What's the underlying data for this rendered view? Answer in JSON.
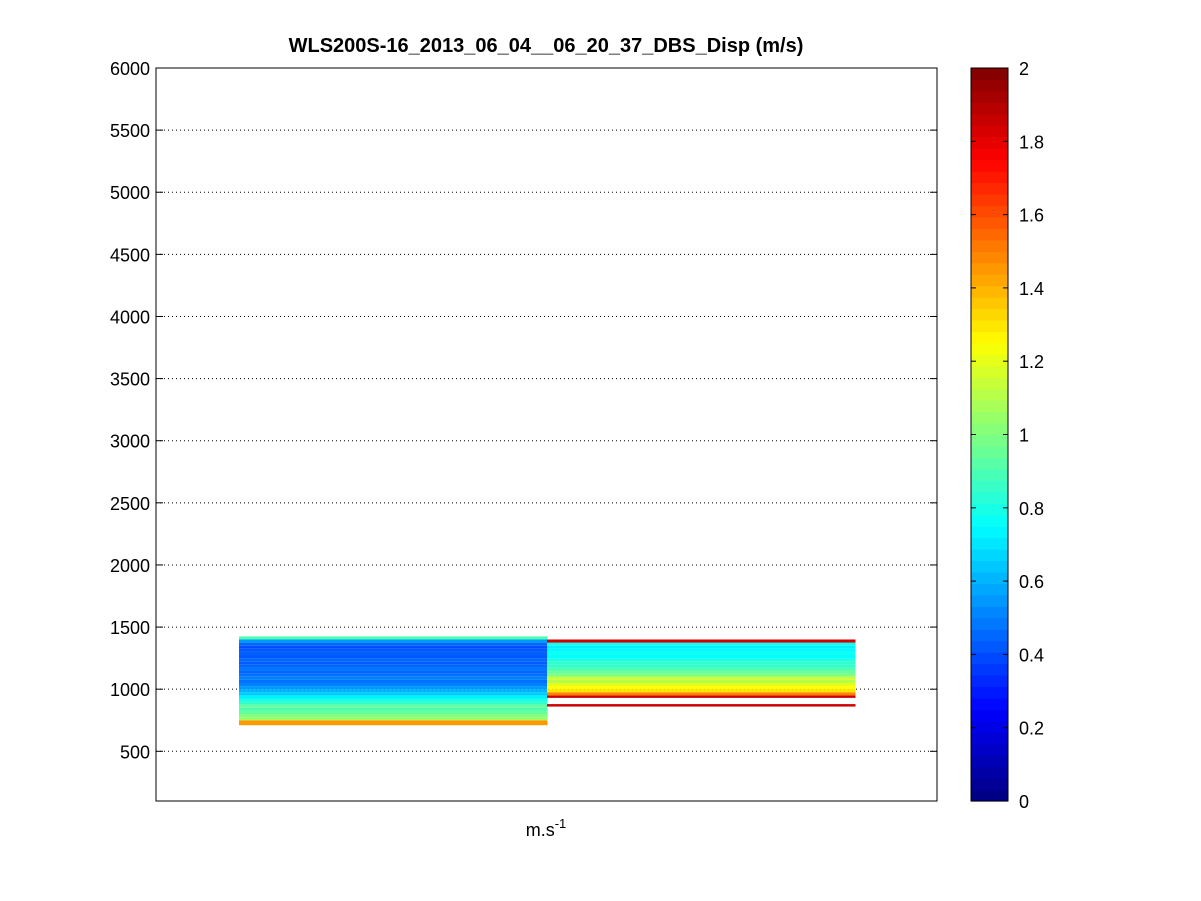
{
  "chart_data": {
    "type": "heatmap",
    "title": "WLS200S-16_2013_06_04__06_20_37_DBS_Disp (m/s)",
    "xlabel_base": "m.s",
    "xlabel_sup": "-1",
    "ylabel": "",
    "ylim": [
      100,
      6000
    ],
    "yticks": [
      500,
      1000,
      1500,
      2000,
      2500,
      3000,
      3500,
      4000,
      4500,
      5000,
      5500,
      6000
    ],
    "grid": "y-dotted",
    "colormap": "jet",
    "clim": [
      0,
      2
    ],
    "colorbar_ticks": [
      0,
      0.2,
      0.4,
      0.6,
      0.8,
      1,
      1.2,
      1.4,
      1.6,
      1.8,
      2
    ],
    "columns": [
      {
        "cells": [
          {
            "from": 710,
            "to": 750,
            "value": 1.45
          },
          {
            "from": 750,
            "to": 775,
            "value": 1.05
          },
          {
            "from": 775,
            "to": 800,
            "value": 1.0
          },
          {
            "from": 800,
            "to": 825,
            "value": 0.95
          },
          {
            "from": 825,
            "to": 850,
            "value": 0.9
          },
          {
            "from": 850,
            "to": 875,
            "value": 0.95
          },
          {
            "from": 875,
            "to": 900,
            "value": 0.85
          },
          {
            "from": 900,
            "to": 925,
            "value": 0.8
          },
          {
            "from": 925,
            "to": 950,
            "value": 0.72
          },
          {
            "from": 950,
            "to": 975,
            "value": 0.65
          },
          {
            "from": 975,
            "to": 1000,
            "value": 0.6
          },
          {
            "from": 1000,
            "to": 1025,
            "value": 0.55
          },
          {
            "from": 1025,
            "to": 1050,
            "value": 0.5
          },
          {
            "from": 1050,
            "to": 1075,
            "value": 0.47
          },
          {
            "from": 1075,
            "to": 1100,
            "value": 0.5
          },
          {
            "from": 1100,
            "to": 1125,
            "value": 0.47
          },
          {
            "from": 1125,
            "to": 1150,
            "value": 0.45
          },
          {
            "from": 1150,
            "to": 1175,
            "value": 0.48
          },
          {
            "from": 1175,
            "to": 1200,
            "value": 0.45
          },
          {
            "from": 1200,
            "to": 1225,
            "value": 0.43
          },
          {
            "from": 1225,
            "to": 1250,
            "value": 0.45
          },
          {
            "from": 1250,
            "to": 1275,
            "value": 0.42
          },
          {
            "from": 1275,
            "to": 1300,
            "value": 0.44
          },
          {
            "from": 1300,
            "to": 1325,
            "value": 0.42
          },
          {
            "from": 1325,
            "to": 1350,
            "value": 0.4
          },
          {
            "from": 1350,
            "to": 1375,
            "value": 0.45
          },
          {
            "from": 1375,
            "to": 1400,
            "value": 0.55
          },
          {
            "from": 1400,
            "to": 1425,
            "value": 0.9
          }
        ]
      },
      {
        "cells": [
          {
            "from": 860,
            "to": 880,
            "value": 1.85
          },
          {
            "from": 930,
            "to": 950,
            "value": 1.85
          },
          {
            "from": 950,
            "to": 975,
            "value": 1.5
          },
          {
            "from": 975,
            "to": 1000,
            "value": 1.3
          },
          {
            "from": 1000,
            "to": 1025,
            "value": 1.25
          },
          {
            "from": 1025,
            "to": 1050,
            "value": 1.2
          },
          {
            "from": 1050,
            "to": 1075,
            "value": 1.1
          },
          {
            "from": 1075,
            "to": 1100,
            "value": 1.15
          },
          {
            "from": 1100,
            "to": 1125,
            "value": 1.0
          },
          {
            "from": 1125,
            "to": 1150,
            "value": 0.95
          },
          {
            "from": 1150,
            "to": 1175,
            "value": 0.9
          },
          {
            "from": 1175,
            "to": 1200,
            "value": 0.85
          },
          {
            "from": 1200,
            "to": 1225,
            "value": 0.85
          },
          {
            "from": 1225,
            "to": 1250,
            "value": 0.8
          },
          {
            "from": 1250,
            "to": 1275,
            "value": 0.75
          },
          {
            "from": 1275,
            "to": 1300,
            "value": 0.78
          },
          {
            "from": 1300,
            "to": 1325,
            "value": 0.74
          },
          {
            "from": 1325,
            "to": 1350,
            "value": 0.72
          },
          {
            "from": 1350,
            "to": 1375,
            "value": 0.78
          },
          {
            "from": 1375,
            "to": 1400,
            "value": 1.85
          }
        ]
      }
    ]
  }
}
